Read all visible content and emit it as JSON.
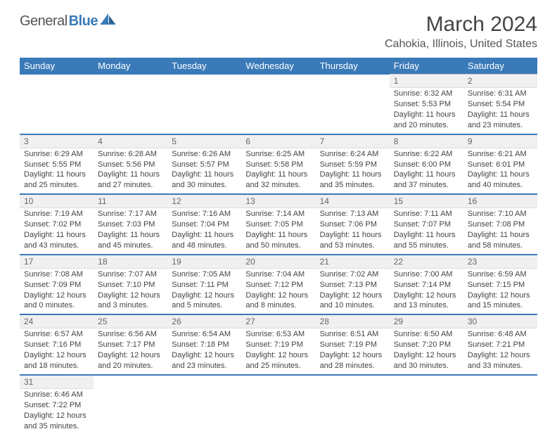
{
  "logo": {
    "text1": "General",
    "text2": "Blue"
  },
  "title": "March 2024",
  "location": "Cahokia, Illinois, United States",
  "colors": {
    "header_bg": "#3a7ab8",
    "header_text": "#ffffff",
    "row_border": "#3a7ab8",
    "cell_border": "#c8c8c8",
    "daybar_bg": "#f0f0f0",
    "text": "#444444",
    "location_text": "#555555"
  },
  "typography": {
    "title_fontsize": 30,
    "location_fontsize": 16,
    "header_fontsize": 13,
    "cell_fontsize": 11,
    "daynum_fontsize": 12
  },
  "daysOfWeek": [
    "Sunday",
    "Monday",
    "Tuesday",
    "Wednesday",
    "Thursday",
    "Friday",
    "Saturday"
  ],
  "weeks": [
    [
      null,
      null,
      null,
      null,
      null,
      {
        "n": "1",
        "sunrise": "Sunrise: 6:32 AM",
        "sunset": "Sunset: 5:53 PM",
        "daylight": "Daylight: 11 hours and 20 minutes."
      },
      {
        "n": "2",
        "sunrise": "Sunrise: 6:31 AM",
        "sunset": "Sunset: 5:54 PM",
        "daylight": "Daylight: 11 hours and 23 minutes."
      }
    ],
    [
      {
        "n": "3",
        "sunrise": "Sunrise: 6:29 AM",
        "sunset": "Sunset: 5:55 PM",
        "daylight": "Daylight: 11 hours and 25 minutes."
      },
      {
        "n": "4",
        "sunrise": "Sunrise: 6:28 AM",
        "sunset": "Sunset: 5:56 PM",
        "daylight": "Daylight: 11 hours and 27 minutes."
      },
      {
        "n": "5",
        "sunrise": "Sunrise: 6:26 AM",
        "sunset": "Sunset: 5:57 PM",
        "daylight": "Daylight: 11 hours and 30 minutes."
      },
      {
        "n": "6",
        "sunrise": "Sunrise: 6:25 AM",
        "sunset": "Sunset: 5:58 PM",
        "daylight": "Daylight: 11 hours and 32 minutes."
      },
      {
        "n": "7",
        "sunrise": "Sunrise: 6:24 AM",
        "sunset": "Sunset: 5:59 PM",
        "daylight": "Daylight: 11 hours and 35 minutes."
      },
      {
        "n": "8",
        "sunrise": "Sunrise: 6:22 AM",
        "sunset": "Sunset: 6:00 PM",
        "daylight": "Daylight: 11 hours and 37 minutes."
      },
      {
        "n": "9",
        "sunrise": "Sunrise: 6:21 AM",
        "sunset": "Sunset: 6:01 PM",
        "daylight": "Daylight: 11 hours and 40 minutes."
      }
    ],
    [
      {
        "n": "10",
        "sunrise": "Sunrise: 7:19 AM",
        "sunset": "Sunset: 7:02 PM",
        "daylight": "Daylight: 11 hours and 43 minutes."
      },
      {
        "n": "11",
        "sunrise": "Sunrise: 7:17 AM",
        "sunset": "Sunset: 7:03 PM",
        "daylight": "Daylight: 11 hours and 45 minutes."
      },
      {
        "n": "12",
        "sunrise": "Sunrise: 7:16 AM",
        "sunset": "Sunset: 7:04 PM",
        "daylight": "Daylight: 11 hours and 48 minutes."
      },
      {
        "n": "13",
        "sunrise": "Sunrise: 7:14 AM",
        "sunset": "Sunset: 7:05 PM",
        "daylight": "Daylight: 11 hours and 50 minutes."
      },
      {
        "n": "14",
        "sunrise": "Sunrise: 7:13 AM",
        "sunset": "Sunset: 7:06 PM",
        "daylight": "Daylight: 11 hours and 53 minutes."
      },
      {
        "n": "15",
        "sunrise": "Sunrise: 7:11 AM",
        "sunset": "Sunset: 7:07 PM",
        "daylight": "Daylight: 11 hours and 55 minutes."
      },
      {
        "n": "16",
        "sunrise": "Sunrise: 7:10 AM",
        "sunset": "Sunset: 7:08 PM",
        "daylight": "Daylight: 11 hours and 58 minutes."
      }
    ],
    [
      {
        "n": "17",
        "sunrise": "Sunrise: 7:08 AM",
        "sunset": "Sunset: 7:09 PM",
        "daylight": "Daylight: 12 hours and 0 minutes."
      },
      {
        "n": "18",
        "sunrise": "Sunrise: 7:07 AM",
        "sunset": "Sunset: 7:10 PM",
        "daylight": "Daylight: 12 hours and 3 minutes."
      },
      {
        "n": "19",
        "sunrise": "Sunrise: 7:05 AM",
        "sunset": "Sunset: 7:11 PM",
        "daylight": "Daylight: 12 hours and 5 minutes."
      },
      {
        "n": "20",
        "sunrise": "Sunrise: 7:04 AM",
        "sunset": "Sunset: 7:12 PM",
        "daylight": "Daylight: 12 hours and 8 minutes."
      },
      {
        "n": "21",
        "sunrise": "Sunrise: 7:02 AM",
        "sunset": "Sunset: 7:13 PM",
        "daylight": "Daylight: 12 hours and 10 minutes."
      },
      {
        "n": "22",
        "sunrise": "Sunrise: 7:00 AM",
        "sunset": "Sunset: 7:14 PM",
        "daylight": "Daylight: 12 hours and 13 minutes."
      },
      {
        "n": "23",
        "sunrise": "Sunrise: 6:59 AM",
        "sunset": "Sunset: 7:15 PM",
        "daylight": "Daylight: 12 hours and 15 minutes."
      }
    ],
    [
      {
        "n": "24",
        "sunrise": "Sunrise: 6:57 AM",
        "sunset": "Sunset: 7:16 PM",
        "daylight": "Daylight: 12 hours and 18 minutes."
      },
      {
        "n": "25",
        "sunrise": "Sunrise: 6:56 AM",
        "sunset": "Sunset: 7:17 PM",
        "daylight": "Daylight: 12 hours and 20 minutes."
      },
      {
        "n": "26",
        "sunrise": "Sunrise: 6:54 AM",
        "sunset": "Sunset: 7:18 PM",
        "daylight": "Daylight: 12 hours and 23 minutes."
      },
      {
        "n": "27",
        "sunrise": "Sunrise: 6:53 AM",
        "sunset": "Sunset: 7:19 PM",
        "daylight": "Daylight: 12 hours and 25 minutes."
      },
      {
        "n": "28",
        "sunrise": "Sunrise: 6:51 AM",
        "sunset": "Sunset: 7:19 PM",
        "daylight": "Daylight: 12 hours and 28 minutes."
      },
      {
        "n": "29",
        "sunrise": "Sunrise: 6:50 AM",
        "sunset": "Sunset: 7:20 PM",
        "daylight": "Daylight: 12 hours and 30 minutes."
      },
      {
        "n": "30",
        "sunrise": "Sunrise: 6:48 AM",
        "sunset": "Sunset: 7:21 PM",
        "daylight": "Daylight: 12 hours and 33 minutes."
      }
    ],
    [
      {
        "n": "31",
        "sunrise": "Sunrise: 6:46 AM",
        "sunset": "Sunset: 7:22 PM",
        "daylight": "Daylight: 12 hours and 35 minutes."
      },
      null,
      null,
      null,
      null,
      null,
      null
    ]
  ]
}
